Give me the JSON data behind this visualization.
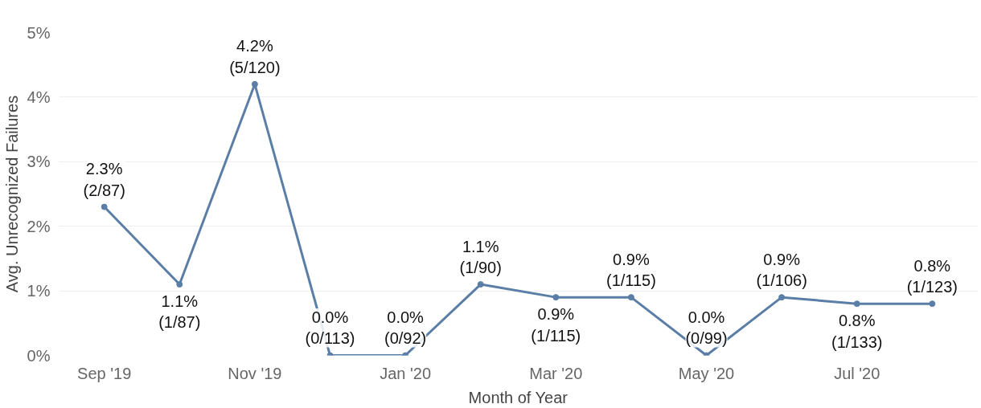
{
  "chart_data": {
    "type": "line",
    "xlabel": "Month of Year",
    "ylabel": "Avg. Unrecognized Failures",
    "categories": [
      "Sep '19",
      null,
      "Nov '19",
      null,
      "Jan '20",
      null,
      "Mar '20",
      null,
      "May '20",
      null,
      "Jul '20",
      null
    ],
    "series": [
      {
        "color": "#5a7ea6",
        "values": [
          2.3,
          1.1,
          4.2,
          0.0,
          0.0,
          1.1,
          0.9,
          0.9,
          0.0,
          0.9,
          0.8,
          0.8
        ],
        "value_labels": [
          "2.3%\n(2/87)",
          "1.1%\n(1/87)",
          "4.2%\n(5/120)",
          "0.0%\n(0/113)",
          "0.0%\n(0/92)",
          "1.1%\n(1/90)",
          "0.9%\n(1/115)",
          "0.9%\n(1/115)",
          "0.0%\n(0/99)",
          "0.9%\n(1/106)",
          "0.8%\n(1/133)",
          "0.8%\n(1/123)"
        ]
      }
    ],
    "ylim": [
      0,
      5
    ],
    "yticks": [
      {
        "value": 0,
        "label": "0%"
      },
      {
        "value": 1,
        "label": "1%"
      },
      {
        "value": 2,
        "label": "2%"
      },
      {
        "value": 3,
        "label": "3%"
      },
      {
        "value": 4,
        "label": "4%"
      },
      {
        "value": 5,
        "label": "5%"
      }
    ],
    "grid": "y",
    "marker": "circle",
    "line_style": "solid"
  }
}
